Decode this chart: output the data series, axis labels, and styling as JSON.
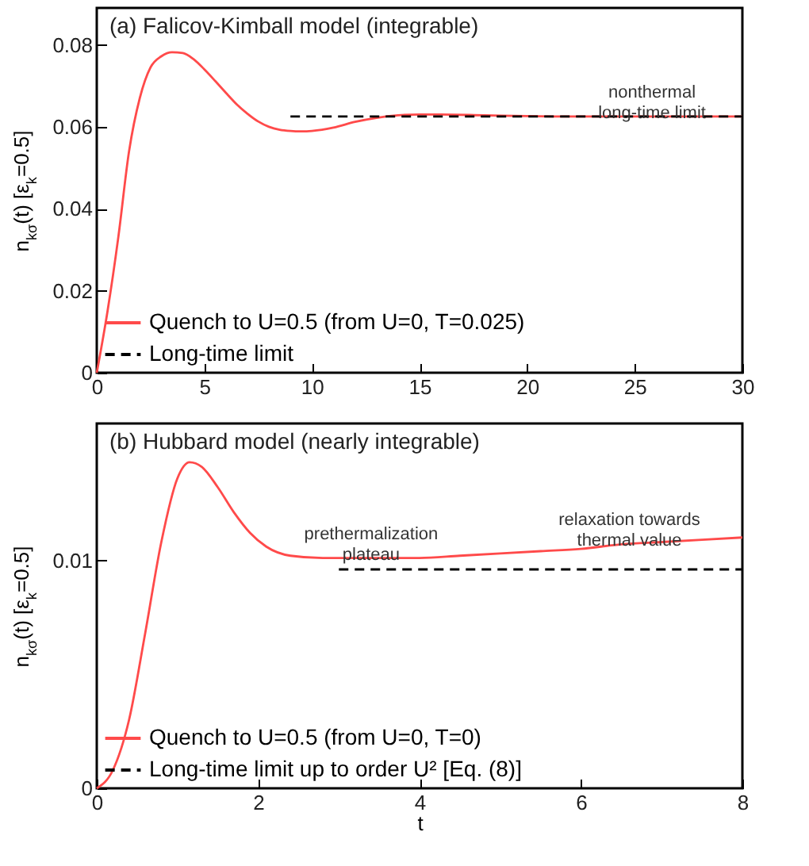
{
  "chart_data": [
    {
      "type": "line",
      "title": "(a) Falicov-Kimball model (integrable)",
      "ylabel": "n$_{kσ}$(t)  [ε$_{k}$=0.5]",
      "xlim": [
        0,
        30
      ],
      "xticks": [
        0,
        5,
        10,
        15,
        20,
        25,
        30
      ],
      "ylim": [
        0,
        0.089
      ],
      "yticks": [
        0,
        0.02,
        0.04,
        0.06,
        0.08
      ],
      "grid": false,
      "legend": "bottom left",
      "series": [
        {
          "name": "Quench to U=0.5 (from U=0, T=0.025)",
          "color": "#ff4a4a",
          "line_style": "solid",
          "x": [
            0,
            0.5,
            1,
            1.5,
            2,
            2.5,
            3,
            3.5,
            4,
            4.5,
            5,
            5.5,
            6,
            6.5,
            7,
            7.5,
            8,
            8.5,
            9,
            9.5,
            10,
            11,
            12,
            13,
            14,
            15,
            16,
            18,
            20,
            22,
            25,
            30
          ],
          "values": [
            0,
            0.015,
            0.033,
            0.054,
            0.067,
            0.0745,
            0.0772,
            0.0782,
            0.078,
            0.0765,
            0.074,
            0.0712,
            0.0683,
            0.0655,
            0.0632,
            0.0613,
            0.06,
            0.0593,
            0.059,
            0.0589,
            0.059,
            0.0598,
            0.0612,
            0.0622,
            0.0628,
            0.063,
            0.063,
            0.0628,
            0.0626,
            0.0625,
            0.0625,
            0.0625
          ]
        },
        {
          "name": "Long-time limit",
          "color": "#000000",
          "line_style": "dashed",
          "x": [
            9,
            30
          ],
          "values": [
            0.0625,
            0.0625
          ]
        }
      ],
      "annotations": [
        {
          "text": "nonthermal\nlong-time limit",
          "x": 25.8,
          "y": 0.0625
        }
      ]
    },
    {
      "type": "line",
      "title": "(b) Hubbard model (nearly integrable)",
      "xlabel": "t",
      "ylabel": "n$_{kσ}$(t)  [ε$_{k}$=0.5]",
      "xlim": [
        0,
        8
      ],
      "xticks": [
        0,
        2,
        4,
        6,
        8
      ],
      "ylim": [
        0,
        0.016
      ],
      "yticks": [
        0,
        0.01
      ],
      "grid": false,
      "legend": "bottom left",
      "series": [
        {
          "name": "Quench to U=0.5 (from U=0, T=0)",
          "color": "#ff4a4a",
          "line_style": "solid",
          "x": [
            0,
            0.2,
            0.4,
            0.6,
            0.8,
            1,
            1.15,
            1.3,
            1.5,
            1.7,
            1.9,
            2.1,
            2.4,
            2.8,
            3.5,
            4,
            4.5,
            5,
            5.5,
            6,
            6.5,
            7,
            7.5,
            8
          ],
          "values": [
            0,
            0.0008,
            0.003,
            0.0068,
            0.0108,
            0.0136,
            0.0143,
            0.0141,
            0.0132,
            0.0121,
            0.0112,
            0.0106,
            0.0102,
            0.0101,
            0.0101,
            0.0101,
            0.0102,
            0.0103,
            0.0104,
            0.0105,
            0.0107,
            0.0108,
            0.0109,
            0.011
          ]
        },
        {
          "name": "Long-time limit up to order U² [Eq. (8)]",
          "color": "#000000",
          "line_style": "dashed",
          "x": [
            3,
            8
          ],
          "values": [
            0.0096,
            0.0096
          ]
        }
      ],
      "annotations": [
        {
          "text": "prethermalization\nplateau",
          "x": 3.4,
          "y": 0.0101
        },
        {
          "text": "relaxation towards\nthermal value",
          "x": 6.6,
          "y": 0.0107
        }
      ]
    }
  ]
}
